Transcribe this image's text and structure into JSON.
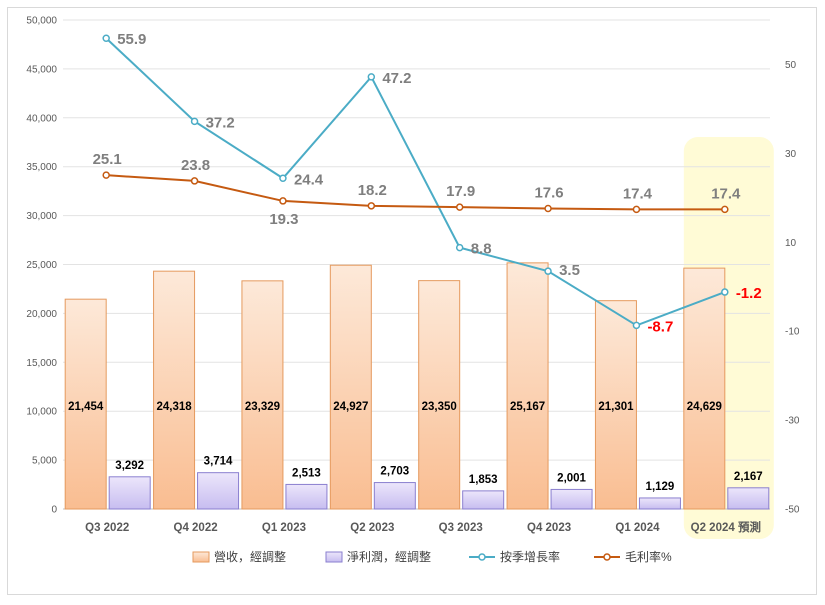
{
  "chart_data": {
    "type": "bar",
    "categories": [
      "Q3 2022",
      "Q4 2022",
      "Q1 2023",
      "Q2 2023",
      "Q3 2023",
      "Q4 2023",
      "Q1 2024",
      "Q2 2024 預測"
    ],
    "highlight_category": "Q2 2024 預測",
    "y_left": {
      "min": 0,
      "max": 50000,
      "step": 5000
    },
    "y_right": {
      "min": -50,
      "max": 60,
      "ticks": [
        50,
        30,
        10,
        -10,
        -30,
        -50
      ]
    },
    "series": [
      {
        "name": "營收，經調整",
        "type": "bar",
        "axis": "left",
        "color": "#f4b183",
        "values": [
          21454,
          24318,
          23329,
          24927,
          23350,
          25167,
          21301,
          24629
        ],
        "labels": [
          "21,454",
          "24,318",
          "23,329",
          "24,927",
          "23,350",
          "25,167",
          "21,301",
          "24,629"
        ]
      },
      {
        "name": "淨利潤，經調整",
        "type": "bar",
        "axis": "left",
        "color": "#b4a7e8",
        "values": [
          3292,
          3714,
          2513,
          2703,
          1853,
          2001,
          1129,
          2167
        ],
        "labels": [
          "3,292",
          "3,714",
          "2,513",
          "2,703",
          "1,853",
          "2,001",
          "1,129",
          "2,167"
        ]
      },
      {
        "name": "按季增長率",
        "type": "line",
        "axis": "right",
        "color": "#4bacc6",
        "values": [
          55.9,
          37.2,
          24.4,
          47.2,
          8.8,
          3.5,
          -8.7,
          -1.2
        ],
        "labels": [
          "55.9",
          "37.2",
          "24.4",
          "47.2",
          "8.8",
          "3.5",
          "-8.7",
          "-1.2"
        ]
      },
      {
        "name": "毛利率%",
        "type": "line",
        "axis": "right",
        "color": "#c55a11",
        "values": [
          25.1,
          23.8,
          19.3,
          18.2,
          17.9,
          17.6,
          17.4,
          17.4
        ],
        "labels": [
          "25.1",
          "23.8",
          "19.3",
          "18.2",
          "17.9",
          "17.6",
          "17.4",
          "17.4"
        ]
      }
    ],
    "grid": true,
    "legend_position": "bottom"
  },
  "colors": {
    "label_gray": "#7f7f7f",
    "label_negative": "#ff0000",
    "highlight_fill": "#fffbd6"
  }
}
